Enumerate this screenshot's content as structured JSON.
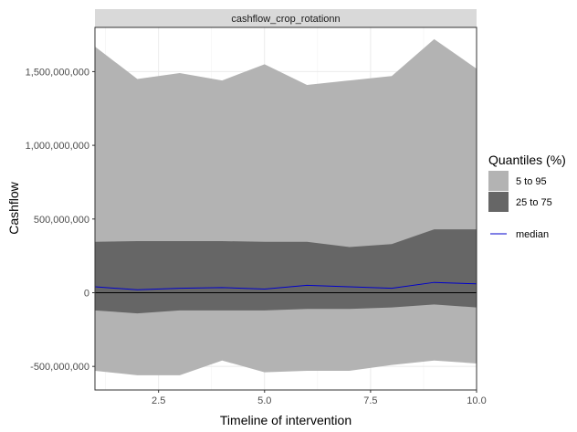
{
  "chart_data": {
    "type": "area",
    "title": "cashflow_crop_rotationn",
    "xlabel": "Timeline of intervention",
    "ylabel": "Cashflow",
    "xlim": [
      1,
      10
    ],
    "ylim": [
      -660000000,
      1800000000
    ],
    "x_ticks": [
      2.5,
      5.0,
      7.5,
      10.0
    ],
    "x_tick_labels": [
      "2.5",
      "5.0",
      "7.5",
      "10.0"
    ],
    "y_ticks": [
      -500000000,
      0,
      500000000,
      1000000000,
      1500000000
    ],
    "y_tick_labels": [
      "-500,000,000",
      "0",
      "500,000,000",
      "1,000,000,000",
      "1,500,000,000"
    ],
    "grid": true,
    "zero_line": true,
    "legend": {
      "title": "Quantiles (%)",
      "position": "right",
      "entries": [
        {
          "label": "5 to 95",
          "kind": "fill",
          "color": "#b3b3b3"
        },
        {
          "label": "25 to 75",
          "kind": "fill",
          "color": "#666666"
        },
        {
          "label": "median",
          "kind": "line",
          "color": "#0000cc"
        }
      ]
    },
    "x": [
      1,
      2,
      3,
      4,
      5,
      6,
      7,
      8,
      9,
      10
    ],
    "series": [
      {
        "name": "5 to 95",
        "color": "#b3b3b3",
        "lower": [
          -530000000,
          -560000000,
          -560000000,
          -460000000,
          -540000000,
          -530000000,
          -530000000,
          -490000000,
          -460000000,
          -480000000
        ],
        "upper": [
          1670000000,
          1450000000,
          1490000000,
          1440000000,
          1550000000,
          1410000000,
          1440000000,
          1470000000,
          1720000000,
          1520000000
        ]
      },
      {
        "name": "25 to 75",
        "color": "#666666",
        "lower": [
          -120000000,
          -140000000,
          -120000000,
          -120000000,
          -120000000,
          -110000000,
          -110000000,
          -100000000,
          -80000000,
          -100000000
        ],
        "upper": [
          345000000,
          350000000,
          350000000,
          350000000,
          345000000,
          345000000,
          310000000,
          330000000,
          430000000,
          430000000
        ]
      },
      {
        "name": "median",
        "color": "#0000cc",
        "values": [
          40000000,
          20000000,
          30000000,
          35000000,
          25000000,
          50000000,
          40000000,
          30000000,
          70000000,
          60000000
        ]
      }
    ]
  }
}
